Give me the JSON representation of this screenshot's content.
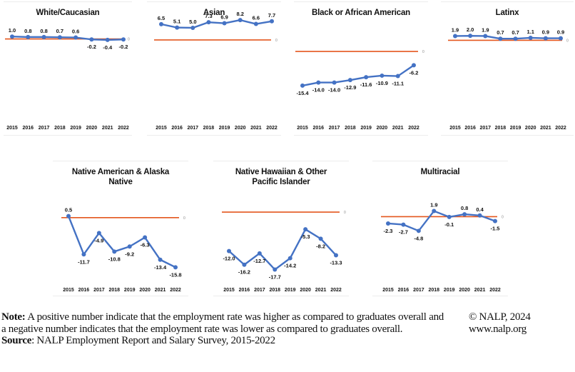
{
  "colors": {
    "line": "#4472C4",
    "zero_line": "#E4571E",
    "text": "#111111"
  },
  "chart_data": [
    {
      "type": "line",
      "title": "White/Caucasian",
      "x": [
        "2015",
        "2016",
        "2017",
        "2018",
        "2019",
        "2020",
        "2021",
        "2022"
      ],
      "values": [
        1.0,
        0.8,
        0.8,
        0.7,
        0.6,
        -0.2,
        -0.4,
        -0.2
      ],
      "labels": [
        "1.0",
        "0.8",
        "0.8",
        "0.7",
        "0.6",
        "-0.2",
        "-0.4",
        "-0.2"
      ],
      "reference_line": 0,
      "reference_label": "0",
      "ylim": [
        -18,
        10
      ]
    },
    {
      "type": "line",
      "title": "Asian",
      "x": [
        "2015",
        "2016",
        "2017",
        "2018",
        "2019",
        "2020",
        "2021",
        "2022"
      ],
      "values": [
        6.5,
        5.1,
        5.0,
        7.3,
        6.9,
        8.2,
        6.6,
        7.7
      ],
      "labels": [
        "6.5",
        "5.1",
        "5.0",
        "7.3",
        "6.9",
        "8.2",
        "6.6",
        "7.7"
      ],
      "reference_line": 0,
      "reference_label": "0",
      "ylim": [
        -18,
        10
      ]
    },
    {
      "type": "line",
      "title": "Black or African American",
      "x": [
        "2015",
        "2016",
        "2017",
        "2018",
        "2019",
        "2020",
        "2021",
        "2022"
      ],
      "values": [
        -15.4,
        -14.0,
        -14.0,
        -12.9,
        -11.6,
        -10.9,
        -11.1,
        -6.2
      ],
      "labels": [
        "-15.4",
        "-14.0",
        "-14.0",
        "-12.9",
        "-11.6",
        "-10.9",
        "-11.1",
        "-6.2"
      ],
      "reference_line": 0,
      "reference_label": "0",
      "ylim": [
        -18,
        10
      ]
    },
    {
      "type": "line",
      "title": "Latinx",
      "x": [
        "2015",
        "2016",
        "2017",
        "2018",
        "2019",
        "2020",
        "2021",
        "2022"
      ],
      "values": [
        1.9,
        2.0,
        1.9,
        0.7,
        0.7,
        1.1,
        0.9,
        0.9
      ],
      "labels": [
        "1.9",
        "2.0",
        "1.9",
        "0.7",
        "0.7",
        "1.1",
        "0.9",
        "0.9"
      ],
      "reference_line": 0,
      "reference_label": "0",
      "ylim": [
        -18,
        10
      ]
    },
    {
      "type": "line",
      "title": "Native American & Alaska Native",
      "title_lines": [
        "Native American & Alaska",
        "Native"
      ],
      "x": [
        "2015",
        "2016",
        "2017",
        "2018",
        "2019",
        "2020",
        "2021",
        "2022"
      ],
      "values": [
        0.5,
        -11.7,
        -4.9,
        -10.8,
        -9.2,
        -6.3,
        -13.4,
        -15.8
      ],
      "labels": [
        "0.5",
        "-11.7",
        "-4.9",
        "-10.8",
        "-9.2",
        "-6.3",
        "-13.4",
        "-15.8"
      ],
      "reference_line": 0,
      "reference_label": "0",
      "ylim": [
        -18,
        2
      ]
    },
    {
      "type": "line",
      "title": "Native Hawaiian & Other Pacific Islander",
      "title_lines": [
        "Native Hawaiian & Other",
        "Pacific Islander"
      ],
      "x": [
        "2015",
        "2016",
        "2017",
        "2018",
        "2019",
        "2020",
        "2021",
        "2022"
      ],
      "values": [
        -12.0,
        -16.2,
        -12.7,
        -17.7,
        -14.2,
        -5.3,
        -8.2,
        -13.3
      ],
      "labels": [
        "-12.0",
        "-16.2",
        "-12.7",
        "-17.7",
        "-14.2",
        "-5.3",
        "-8.2",
        "-13.3"
      ],
      "reference_line": 0,
      "reference_label": "0",
      "ylim": [
        -20,
        2
      ]
    },
    {
      "type": "line",
      "title": "Multiracial",
      "x": [
        "2015",
        "2016",
        "2017",
        "2018",
        "2019",
        "2020",
        "2021",
        "2022"
      ],
      "values": [
        -2.3,
        -2.7,
        -4.8,
        1.9,
        -0.1,
        0.8,
        0.4,
        -1.5
      ],
      "labels": [
        "-2.3",
        "-2.7",
        "-4.8",
        "1.9",
        "-0.1",
        "0.8",
        "0.4",
        "-1.5"
      ],
      "reference_line": 0,
      "reference_label": "0",
      "ylim": [
        -18,
        10
      ]
    }
  ],
  "footer": {
    "note_label": "Note:",
    "note_text": " A positive number indicate that the employment rate was higher as compared to graduates overall and a negative number indicates that the employment rate was lower as compared to graduates overall.",
    "source_label": "Source",
    "source_text": ": NALP Employment Report and Salary Survey, 2015-2022",
    "copyright": "© NALP, 2024",
    "website": "www.nalp.org"
  }
}
